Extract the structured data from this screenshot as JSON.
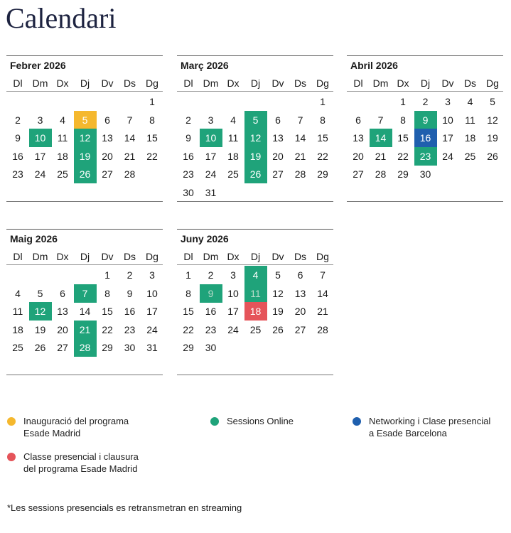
{
  "title": "Calendari",
  "weekdays": [
    "Dl",
    "Dm",
    "Dx",
    "Dj",
    "Dv",
    "Ds",
    "Dg"
  ],
  "months": [
    {
      "name": "Febrer 2026",
      "weeks": [
        [
          null,
          null,
          null,
          null,
          null,
          null,
          1
        ],
        [
          2,
          3,
          4,
          {
            "day": 5,
            "color": "#f5b82e"
          },
          6,
          7,
          8
        ],
        [
          9,
          {
            "day": 10,
            "color": "#1fa37a"
          },
          11,
          {
            "day": 12,
            "color": "#1fa37a"
          },
          13,
          14,
          15
        ],
        [
          16,
          17,
          18,
          {
            "day": 19,
            "color": "#1fa37a"
          },
          20,
          21,
          22
        ],
        [
          23,
          24,
          25,
          {
            "day": 26,
            "color": "#1fa37a"
          },
          27,
          28,
          null
        ]
      ]
    },
    {
      "name": "Març 2026",
      "weeks": [
        [
          null,
          null,
          null,
          null,
          null,
          null,
          1
        ],
        [
          2,
          3,
          4,
          {
            "day": 5,
            "color": "#1fa37a"
          },
          6,
          7,
          8
        ],
        [
          9,
          {
            "day": 10,
            "color": "#1fa37a"
          },
          11,
          {
            "day": 12,
            "color": "#1fa37a"
          },
          13,
          14,
          15
        ],
        [
          16,
          17,
          18,
          {
            "day": 19,
            "color": "#1fa37a"
          },
          20,
          21,
          22
        ],
        [
          23,
          24,
          25,
          {
            "day": 26,
            "color": "#1fa37a"
          },
          27,
          28,
          29
        ],
        [
          30,
          31,
          null,
          null,
          null,
          null,
          null
        ]
      ]
    },
    {
      "name": "Abril 2026",
      "weeks": [
        [
          null,
          null,
          1,
          2,
          3,
          4,
          5
        ],
        [
          6,
          7,
          8,
          {
            "day": 9,
            "color": "#1fa37a"
          },
          10,
          11,
          12
        ],
        [
          13,
          {
            "day": 14,
            "color": "#1fa37a"
          },
          15,
          {
            "day": 16,
            "color": "#1f5fae"
          },
          17,
          18,
          19
        ],
        [
          20,
          21,
          22,
          {
            "day": 23,
            "color": "#1fa37a"
          },
          24,
          25,
          26
        ],
        [
          27,
          28,
          29,
          30,
          null,
          null,
          null
        ]
      ]
    },
    {
      "name": "Maig 2026",
      "weeks": [
        [
          null,
          null,
          null,
          null,
          1,
          2,
          3
        ],
        [
          4,
          5,
          6,
          {
            "day": 7,
            "color": "#1fa37a"
          },
          8,
          9,
          10
        ],
        [
          11,
          {
            "day": 12,
            "color": "#1fa37a"
          },
          13,
          14,
          15,
          16,
          17
        ],
        [
          18,
          19,
          20,
          {
            "day": 21,
            "color": "#1fa37a"
          },
          22,
          23,
          24
        ],
        [
          25,
          26,
          27,
          {
            "day": 28,
            "color": "#1fa37a"
          },
          29,
          30,
          31
        ]
      ]
    },
    {
      "name": "Juny 2026",
      "weeks": [
        [
          1,
          2,
          3,
          {
            "day": 4,
            "color": "#1fa37a"
          },
          5,
          6,
          7
        ],
        [
          8,
          {
            "day": 9,
            "color": "#1fa37a",
            "text_color": "#b9dccb"
          },
          10,
          {
            "day": 11,
            "color": "#1fa37a",
            "text_color": "#b9dccb"
          },
          12,
          13,
          14
        ],
        [
          15,
          16,
          17,
          {
            "day": 18,
            "color": "#e5545a"
          },
          19,
          20,
          21
        ],
        [
          22,
          23,
          24,
          25,
          26,
          27,
          28
        ],
        [
          29,
          30,
          null,
          null,
          null,
          null,
          null
        ]
      ]
    }
  ],
  "legend": [
    {
      "color": "#f5b82e",
      "lines": [
        "Inauguració del programa",
        "Esade Madrid"
      ]
    },
    {
      "color": "#1fa37a",
      "lines": [
        "Sessions Online"
      ]
    },
    {
      "color": "#1f5fae",
      "lines": [
        "Networking i Clase presencial",
        "a Esade Barcelona"
      ]
    },
    {
      "color": "#e5545a",
      "lines": [
        "Classe presencial i clausura",
        "del programa Esade Madrid"
      ]
    }
  ],
  "footnote": "*Les sessions presencials es retransmetran en streaming"
}
